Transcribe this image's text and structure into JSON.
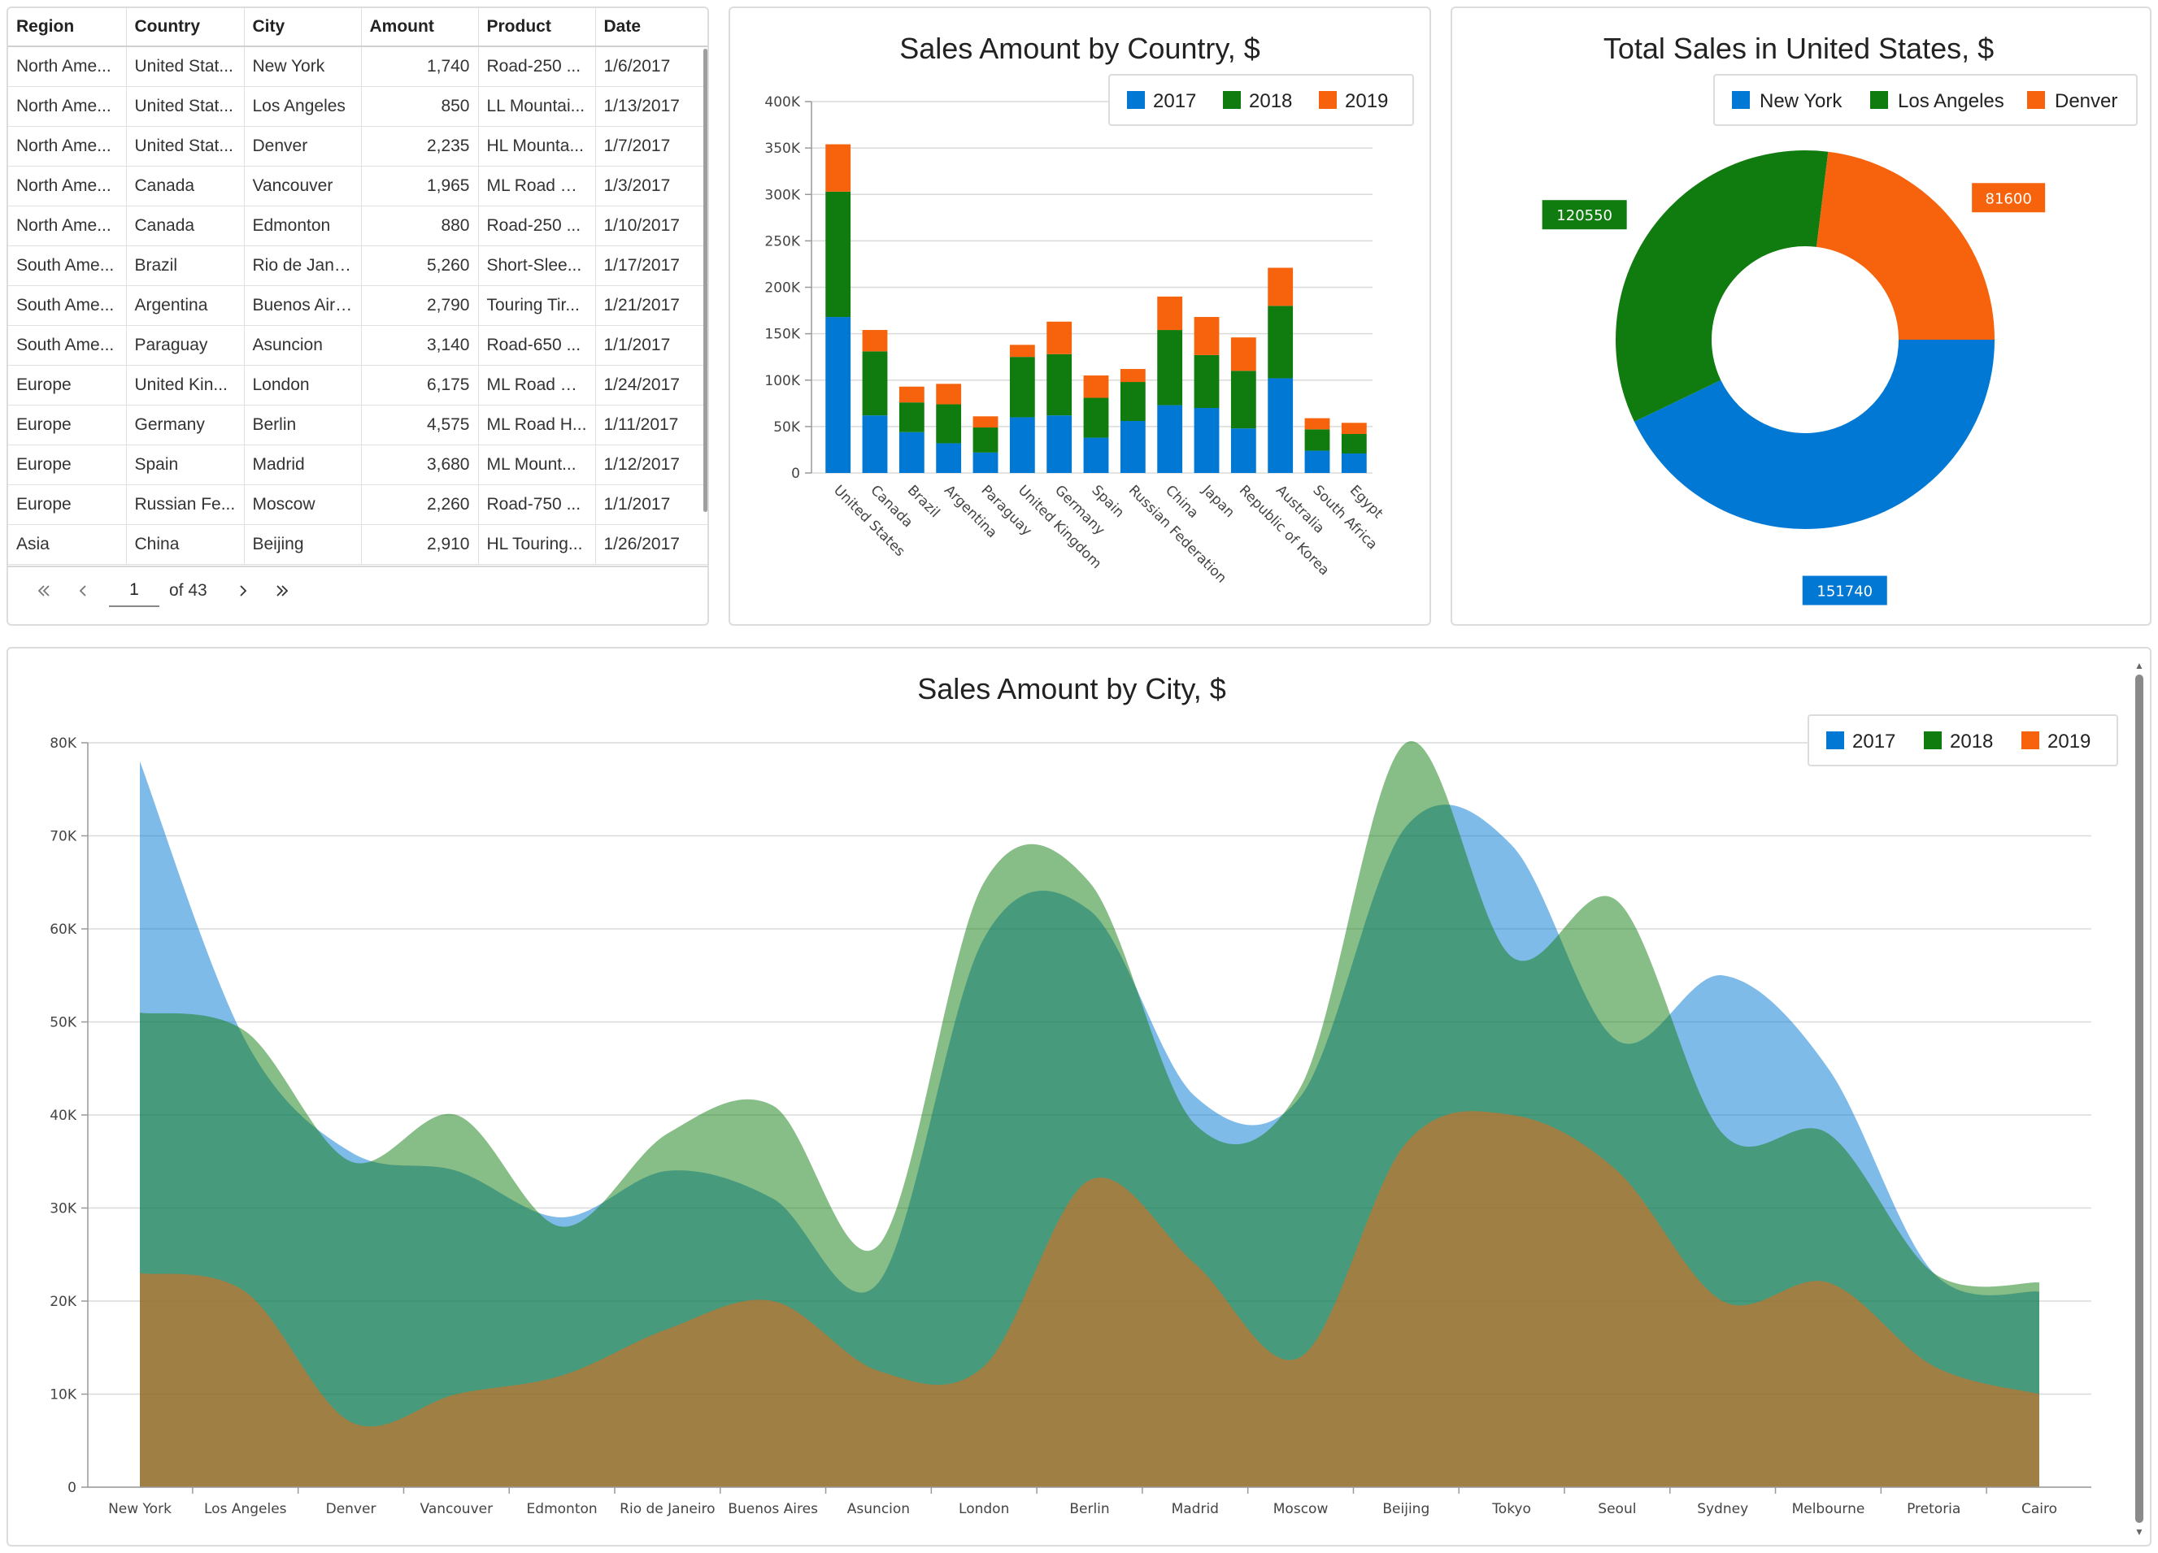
{
  "grid": {
    "columns": [
      "Region",
      "Country",
      "City",
      "Amount",
      "Product",
      "Date"
    ],
    "rows": [
      [
        "North Ame...",
        "United Stat...",
        "New York",
        "1,740",
        "Road-250 ...",
        "1/6/2017"
      ],
      [
        "North Ame...",
        "United Stat...",
        "Los Angeles",
        "850",
        "LL Mountai...",
        "1/13/2017"
      ],
      [
        "North Ame...",
        "United Stat...",
        "Denver",
        "2,235",
        "HL Mounta...",
        "1/7/2017"
      ],
      [
        "North Ame...",
        "Canada",
        "Vancouver",
        "1,965",
        "ML Road Fr...",
        "1/3/2017"
      ],
      [
        "North Ame...",
        "Canada",
        "Edmonton",
        "880",
        "Road-250 ...",
        "1/10/2017"
      ],
      [
        "South Ame...",
        "Brazil",
        "Rio de Jane...",
        "5,260",
        "Short-Slee...",
        "1/17/2017"
      ],
      [
        "South Ame...",
        "Argentina",
        "Buenos Aires",
        "2,790",
        "Touring Tir...",
        "1/21/2017"
      ],
      [
        "South Ame...",
        "Paraguay",
        "Asuncion",
        "3,140",
        "Road-650 ...",
        "1/1/2017"
      ],
      [
        "Europe",
        "United Kin...",
        "London",
        "6,175",
        "ML Road Fr...",
        "1/24/2017"
      ],
      [
        "Europe",
        "Germany",
        "Berlin",
        "4,575",
        "ML Road H...",
        "1/11/2017"
      ],
      [
        "Europe",
        "Spain",
        "Madrid",
        "3,680",
        "ML Mount...",
        "1/12/2017"
      ],
      [
        "Europe",
        "Russian Fe...",
        "Moscow",
        "2,260",
        "Road-750 ...",
        "1/1/2017"
      ],
      [
        "Asia",
        "China",
        "Beijing",
        "2,910",
        "HL Touring...",
        "1/26/2017"
      ]
    ],
    "pager": {
      "page": "1",
      "of_label": "of 43"
    }
  },
  "colors": {
    "y2017": "#0078d4",
    "y2018": "#107c10",
    "y2019": "#f7630c"
  },
  "chart_data": [
    {
      "type": "bar",
      "stacked": true,
      "title": "Sales Amount by Country, $",
      "categories": [
        "United States",
        "Canada",
        "Brazil",
        "Argentina",
        "Paraguay",
        "United Kingdom",
        "Germany",
        "Spain",
        "Russian Federation",
        "China",
        "Japan",
        "Republic of Korea",
        "Australia",
        "South Africa",
        "Egypt"
      ],
      "series": [
        {
          "name": "2017",
          "values": [
            168000,
            62000,
            44000,
            32000,
            22000,
            60000,
            62000,
            38000,
            56000,
            73000,
            70000,
            48000,
            102000,
            24000,
            21000
          ]
        },
        {
          "name": "2018",
          "values": [
            135000,
            69000,
            32000,
            42000,
            27000,
            65000,
            66000,
            43000,
            42000,
            81000,
            57000,
            62000,
            78000,
            23000,
            21000
          ]
        },
        {
          "name": "2019",
          "values": [
            51000,
            23000,
            17000,
            22000,
            12000,
            13000,
            35000,
            24000,
            14000,
            36000,
            41000,
            36000,
            41000,
            12000,
            12000
          ]
        }
      ],
      "yticks": [
        "0",
        "50K",
        "100K",
        "150K",
        "200K",
        "250K",
        "300K",
        "350K",
        "400K"
      ],
      "ylim": [
        0,
        400000
      ],
      "legend": "top-right"
    },
    {
      "type": "pie",
      "donut": true,
      "title": "Total Sales in United States, $",
      "labels": [
        "New York",
        "Los Angeles",
        "Denver"
      ],
      "values": [
        151740,
        120550,
        81600
      ],
      "value_labels": [
        "151740",
        "120550",
        "81600"
      ],
      "legend": "top-right"
    },
    {
      "type": "area",
      "title": "Sales Amount by City, $",
      "categories": [
        "New York",
        "Los Angeles",
        "Denver",
        "Vancouver",
        "Edmonton",
        "Rio de Janeiro",
        "Buenos Aires",
        "Asuncion",
        "London",
        "Berlin",
        "Madrid",
        "Moscow",
        "Beijing",
        "Tokyo",
        "Seoul",
        "Sydney",
        "Melbourne",
        "Pretoria",
        "Cairo"
      ],
      "series": [
        {
          "name": "2017",
          "values": [
            78000,
            48000,
            36000,
            34000,
            29000,
            34000,
            31000,
            22000,
            59000,
            62000,
            42000,
            42000,
            71000,
            69000,
            48000,
            55000,
            45000,
            23000,
            21000
          ]
        },
        {
          "name": "2018",
          "values": [
            51000,
            49000,
            35000,
            40000,
            28000,
            38000,
            41000,
            26000,
            65000,
            65000,
            39000,
            43000,
            80000,
            57000,
            63000,
            38000,
            38000,
            23000,
            22000
          ]
        },
        {
          "name": "2019",
          "values": [
            23000,
            21000,
            7000,
            10000,
            12000,
            17000,
            20000,
            12500,
            13000,
            33000,
            24000,
            14000,
            37000,
            40000,
            34000,
            20000,
            22000,
            13000,
            10000
          ]
        }
      ],
      "yticks": [
        "0",
        "10K",
        "20K",
        "30K",
        "40K",
        "50K",
        "60K",
        "70K",
        "80K"
      ],
      "ylim": [
        0,
        80000
      ],
      "legend": "top-right"
    }
  ]
}
